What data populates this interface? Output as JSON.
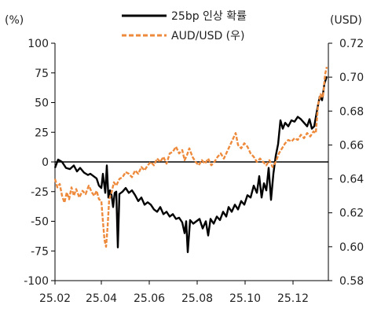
{
  "chart_data": {
    "type": "line",
    "title": "",
    "y_left_unit": "(%)",
    "y_right_unit": "(USD)",
    "xlabel": "",
    "x_ticks": [
      "25.02",
      "25.04",
      "25.06",
      "25.08",
      "25.10",
      "25.12"
    ],
    "y_left_ticks": [
      "100",
      "75",
      "50",
      "25",
      "0",
      "-25",
      "-50",
      "-75",
      "-100"
    ],
    "y_right_ticks": [
      "0.72",
      "0.70",
      "0.68",
      "0.66",
      "0.64",
      "0.62",
      "0.60",
      "0.58"
    ],
    "ylim_left": [
      -100,
      100
    ],
    "ylim_right": [
      0.58,
      0.72
    ],
    "x_range": [
      "2025-02-01",
      "2026-01-15"
    ],
    "legend_position": "top-center",
    "series": [
      {
        "name": "25bp 인상 확률",
        "axis": "left",
        "color": "#000000",
        "style": "solid",
        "points": [
          [
            "2025-02-01",
            -5
          ],
          [
            "2025-02-05",
            2
          ],
          [
            "2025-02-10",
            0
          ],
          [
            "2025-02-15",
            -5
          ],
          [
            "2025-02-20",
            -6
          ],
          [
            "2025-02-25",
            -3
          ],
          [
            "2025-03-01",
            -8
          ],
          [
            "2025-03-05",
            -5
          ],
          [
            "2025-03-10",
            -9
          ],
          [
            "2025-03-15",
            -11
          ],
          [
            "2025-03-18",
            -10
          ],
          [
            "2025-03-22",
            -12
          ],
          [
            "2025-03-26",
            -14
          ],
          [
            "2025-03-29",
            -20
          ],
          [
            "2025-04-01",
            -22
          ],
          [
            "2025-04-03",
            -10
          ],
          [
            "2025-04-06",
            -26
          ],
          [
            "2025-04-08",
            -3
          ],
          [
            "2025-04-10",
            -30
          ],
          [
            "2025-04-12",
            -24
          ],
          [
            "2025-04-14",
            -28
          ],
          [
            "2025-04-16",
            -38
          ],
          [
            "2025-04-18",
            -26
          ],
          [
            "2025-04-20",
            -25
          ],
          [
            "2025-04-22",
            -72
          ],
          [
            "2025-04-24",
            -27
          ],
          [
            "2025-04-28",
            -25
          ],
          [
            "2025-05-02",
            -22
          ],
          [
            "2025-05-06",
            -26
          ],
          [
            "2025-05-10",
            -24
          ],
          [
            "2025-05-14",
            -28
          ],
          [
            "2025-05-18",
            -33
          ],
          [
            "2025-05-22",
            -30
          ],
          [
            "2025-05-26",
            -36
          ],
          [
            "2025-05-30",
            -34
          ],
          [
            "2025-06-03",
            -36
          ],
          [
            "2025-06-07",
            -40
          ],
          [
            "2025-06-11",
            -42
          ],
          [
            "2025-06-15",
            -38
          ],
          [
            "2025-06-19",
            -44
          ],
          [
            "2025-06-23",
            -42
          ],
          [
            "2025-06-27",
            -46
          ],
          [
            "2025-07-01",
            -44
          ],
          [
            "2025-07-05",
            -48
          ],
          [
            "2025-07-09",
            -47
          ],
          [
            "2025-07-13",
            -51
          ],
          [
            "2025-07-16",
            -60
          ],
          [
            "2025-07-18",
            -50
          ],
          [
            "2025-07-20",
            -76
          ],
          [
            "2025-07-23",
            -49
          ],
          [
            "2025-07-27",
            -52
          ],
          [
            "2025-07-31",
            -50
          ],
          [
            "2025-08-04",
            -48
          ],
          [
            "2025-08-08",
            -56
          ],
          [
            "2025-08-12",
            -50
          ],
          [
            "2025-08-15",
            -62
          ],
          [
            "2025-08-18",
            -48
          ],
          [
            "2025-08-22",
            -52
          ],
          [
            "2025-08-26",
            -46
          ],
          [
            "2025-08-30",
            -49
          ],
          [
            "2025-09-03",
            -42
          ],
          [
            "2025-09-07",
            -46
          ],
          [
            "2025-09-10",
            -38
          ],
          [
            "2025-09-14",
            -42
          ],
          [
            "2025-09-18",
            -36
          ],
          [
            "2025-09-22",
            -40
          ],
          [
            "2025-09-26",
            -33
          ],
          [
            "2025-09-30",
            -36
          ],
          [
            "2025-10-04",
            -28
          ],
          [
            "2025-10-08",
            -30
          ],
          [
            "2025-10-12",
            -20
          ],
          [
            "2025-10-16",
            -26
          ],
          [
            "2025-10-19",
            -12
          ],
          [
            "2025-10-22",
            -30
          ],
          [
            "2025-10-25",
            -18
          ],
          [
            "2025-10-28",
            -24
          ],
          [
            "2025-10-31",
            -5
          ],
          [
            "2025-11-03",
            -32
          ],
          [
            "2025-11-06",
            -10
          ],
          [
            "2025-11-09",
            5
          ],
          [
            "2025-11-12",
            15
          ],
          [
            "2025-11-15",
            35
          ],
          [
            "2025-11-18",
            28
          ],
          [
            "2025-11-21",
            33
          ],
          [
            "2025-11-25",
            30
          ],
          [
            "2025-11-29",
            35
          ],
          [
            "2025-12-03",
            34
          ],
          [
            "2025-12-07",
            38
          ],
          [
            "2025-12-11",
            36
          ],
          [
            "2025-12-15",
            33
          ],
          [
            "2025-12-19",
            30
          ],
          [
            "2025-12-22",
            36
          ],
          [
            "2025-12-25",
            28
          ],
          [
            "2025-12-28",
            30
          ],
          [
            "2026-01-01",
            45
          ],
          [
            "2026-01-04",
            55
          ],
          [
            "2026-01-07",
            52
          ],
          [
            "2026-01-10",
            66
          ],
          [
            "2026-01-13",
            72
          ]
        ]
      },
      {
        "name": "AUD/USD (우)",
        "axis": "right",
        "color": "#ee8a3c",
        "style": "dashed",
        "points": [
          [
            "2025-02-01",
            0.64
          ],
          [
            "2025-02-04",
            0.635
          ],
          [
            "2025-02-07",
            0.637
          ],
          [
            "2025-02-10",
            0.63
          ],
          [
            "2025-02-13",
            0.626
          ],
          [
            "2025-02-16",
            0.632
          ],
          [
            "2025-02-19",
            0.628
          ],
          [
            "2025-02-22",
            0.635
          ],
          [
            "2025-02-25",
            0.63
          ],
          [
            "2025-02-28",
            0.634
          ],
          [
            "2025-03-04",
            0.629
          ],
          [
            "2025-03-08",
            0.633
          ],
          [
            "2025-03-12",
            0.631
          ],
          [
            "2025-03-16",
            0.636
          ],
          [
            "2025-03-20",
            0.632
          ],
          [
            "2025-03-23",
            0.63
          ],
          [
            "2025-03-26",
            0.633
          ],
          [
            "2025-03-29",
            0.628
          ],
          [
            "2025-04-01",
            0.627
          ],
          [
            "2025-04-03",
            0.615
          ],
          [
            "2025-04-05",
            0.604
          ],
          [
            "2025-04-07",
            0.6
          ],
          [
            "2025-04-09",
            0.612
          ],
          [
            "2025-04-11",
            0.628
          ],
          [
            "2025-04-14",
            0.632
          ],
          [
            "2025-04-17",
            0.638
          ],
          [
            "2025-04-20",
            0.636
          ],
          [
            "2025-04-24",
            0.64
          ],
          [
            "2025-04-28",
            0.641
          ],
          [
            "2025-05-02",
            0.644
          ],
          [
            "2025-05-06",
            0.643
          ],
          [
            "2025-05-10",
            0.641
          ],
          [
            "2025-05-14",
            0.645
          ],
          [
            "2025-05-18",
            0.643
          ],
          [
            "2025-05-22",
            0.647
          ],
          [
            "2025-05-26",
            0.645
          ],
          [
            "2025-05-30",
            0.648
          ],
          [
            "2025-06-03",
            0.65
          ],
          [
            "2025-06-07",
            0.648
          ],
          [
            "2025-06-11",
            0.652
          ],
          [
            "2025-06-15",
            0.65
          ],
          [
            "2025-06-19",
            0.653
          ],
          [
            "2025-06-23",
            0.649
          ],
          [
            "2025-06-27",
            0.655
          ],
          [
            "2025-07-01",
            0.656
          ],
          [
            "2025-07-05",
            0.659
          ],
          [
            "2025-07-09",
            0.655
          ],
          [
            "2025-07-13",
            0.657
          ],
          [
            "2025-07-16",
            0.651
          ],
          [
            "2025-07-19",
            0.654
          ],
          [
            "2025-07-22",
            0.658
          ],
          [
            "2025-07-26",
            0.653
          ],
          [
            "2025-07-30",
            0.65
          ],
          [
            "2025-08-03",
            0.648
          ],
          [
            "2025-08-07",
            0.651
          ],
          [
            "2025-08-11",
            0.649
          ],
          [
            "2025-08-15",
            0.652
          ],
          [
            "2025-08-19",
            0.648
          ],
          [
            "2025-08-23",
            0.65
          ],
          [
            "2025-08-27",
            0.653
          ],
          [
            "2025-08-31",
            0.655
          ],
          [
            "2025-09-04",
            0.652
          ],
          [
            "2025-09-08",
            0.656
          ],
          [
            "2025-09-12",
            0.66
          ],
          [
            "2025-09-16",
            0.664
          ],
          [
            "2025-09-19",
            0.667
          ],
          [
            "2025-09-22",
            0.66
          ],
          [
            "2025-09-26",
            0.658
          ],
          [
            "2025-09-30",
            0.661
          ],
          [
            "2025-10-04",
            0.659
          ],
          [
            "2025-10-08",
            0.655
          ],
          [
            "2025-10-12",
            0.653
          ],
          [
            "2025-10-16",
            0.65
          ],
          [
            "2025-10-20",
            0.652
          ],
          [
            "2025-10-24",
            0.65
          ],
          [
            "2025-10-28",
            0.648
          ],
          [
            "2025-11-01",
            0.651
          ],
          [
            "2025-11-05",
            0.647
          ],
          [
            "2025-11-09",
            0.65
          ],
          [
            "2025-11-13",
            0.655
          ],
          [
            "2025-11-17",
            0.658
          ],
          [
            "2025-11-21",
            0.661
          ],
          [
            "2025-11-25",
            0.663
          ],
          [
            "2025-11-29",
            0.662
          ],
          [
            "2025-12-03",
            0.664
          ],
          [
            "2025-12-07",
            0.663
          ],
          [
            "2025-12-11",
            0.666
          ],
          [
            "2025-12-15",
            0.664
          ],
          [
            "2025-12-19",
            0.667
          ],
          [
            "2025-12-23",
            0.665
          ],
          [
            "2025-12-27",
            0.668
          ],
          [
            "2025-12-30",
            0.667
          ],
          [
            "2026-01-02",
            0.684
          ],
          [
            "2026-01-05",
            0.69
          ],
          [
            "2026-01-08",
            0.688
          ],
          [
            "2026-01-11",
            0.702
          ],
          [
            "2026-01-13",
            0.706
          ]
        ]
      }
    ]
  }
}
